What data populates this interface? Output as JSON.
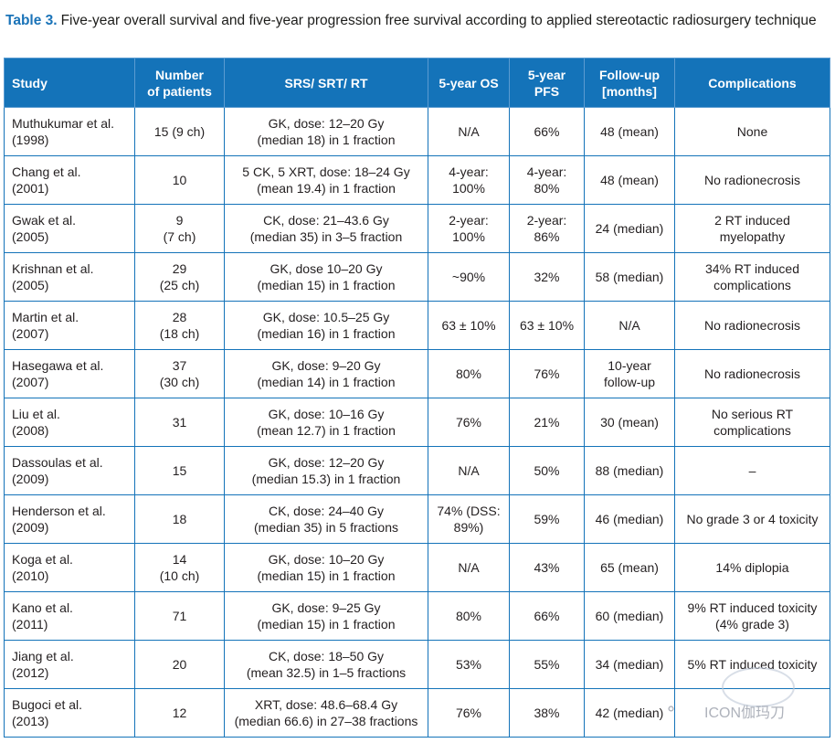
{
  "caption": {
    "label": "Table 3.",
    "text": "Five-year overall survival and five-year progression free survival according to applied stereotactic radiosurgery technique"
  },
  "headers": [
    [
      "Study"
    ],
    [
      "Number",
      "of patients"
    ],
    [
      "SRS/ SRT/ RT"
    ],
    [
      "5-year OS"
    ],
    [
      "5-year",
      "PFS"
    ],
    [
      "Follow-up",
      "[months]"
    ],
    [
      "Complications"
    ]
  ],
  "rows": [
    [
      [
        "Muthukumar et al.",
        "(1998)"
      ],
      [
        "15 (9 ch)"
      ],
      [
        "GK, dose: 12–20 Gy",
        "(median 18) in 1 fraction"
      ],
      [
        "N/A"
      ],
      [
        "66%"
      ],
      [
        "48 (mean)"
      ],
      [
        "None"
      ]
    ],
    [
      [
        "Chang et al.",
        "(2001)"
      ],
      [
        "10"
      ],
      [
        "5 CK, 5 XRT, dose: 18–24 Gy",
        "(mean 19.4) in 1 fraction"
      ],
      [
        "4-year:",
        "100%"
      ],
      [
        "4-year:",
        "80%"
      ],
      [
        "48 (mean)"
      ],
      [
        "No radionecrosis"
      ]
    ],
    [
      [
        "Gwak et al.",
        "(2005)"
      ],
      [
        "9",
        "(7 ch)"
      ],
      [
        "CK, dose: 21–43.6 Gy",
        "(median 35) in 3–5 fraction"
      ],
      [
        "2-year:",
        "100%"
      ],
      [
        "2-year:",
        "86%"
      ],
      [
        "24 (median)"
      ],
      [
        "2 RT induced",
        "myelopathy"
      ]
    ],
    [
      [
        "Krishnan et al.",
        "(2005)"
      ],
      [
        "29",
        "(25 ch)"
      ],
      [
        "GK, dose 10–20 Gy",
        "(median 15) in 1 fraction"
      ],
      [
        "~90%"
      ],
      [
        "32%"
      ],
      [
        "58 (median)"
      ],
      [
        "34% RT induced",
        "complications"
      ]
    ],
    [
      [
        "Martin et al.",
        "(2007)"
      ],
      [
        "28",
        "(18 ch)"
      ],
      [
        "GK, dose: 10.5–25 Gy",
        "(median 16) in 1 fraction"
      ],
      [
        "63 ± 10%"
      ],
      [
        "63 ± 10%"
      ],
      [
        "N/A"
      ],
      [
        "No radionecrosis"
      ]
    ],
    [
      [
        "Hasegawa et al.",
        "(2007)"
      ],
      [
        "37",
        "(30 ch)"
      ],
      [
        "GK, dose: 9–20 Gy",
        "(median 14) in 1 fraction"
      ],
      [
        "80%"
      ],
      [
        "76%"
      ],
      [
        "10-year",
        "follow-up"
      ],
      [
        "No radionecrosis"
      ]
    ],
    [
      [
        "Liu et al.",
        "(2008)"
      ],
      [
        "31"
      ],
      [
        "GK, dose: 10–16 Gy",
        "(mean 12.7) in 1 fraction"
      ],
      [
        "76%"
      ],
      [
        "21%"
      ],
      [
        "30 (mean)"
      ],
      [
        "No serious RT",
        "complications"
      ]
    ],
    [
      [
        "Dassoulas et al.",
        "(2009)"
      ],
      [
        "15"
      ],
      [
        "GK, dose: 12–20 Gy",
        "(median 15.3) in 1 fraction"
      ],
      [
        "N/A"
      ],
      [
        "50%"
      ],
      [
        "88 (median)"
      ],
      [
        "–"
      ]
    ],
    [
      [
        "Henderson et al.",
        "(2009)"
      ],
      [
        "18"
      ],
      [
        "CK, dose: 24–40 Gy",
        "(median 35) in 5 fractions"
      ],
      [
        "74% (DSS:",
        "89%)"
      ],
      [
        "59%"
      ],
      [
        "46 (median)"
      ],
      [
        "No grade 3 or 4 toxicity"
      ]
    ],
    [
      [
        "Koga et al.",
        "(2010)"
      ],
      [
        "14",
        "(10 ch)"
      ],
      [
        "GK, dose: 10–20 Gy",
        "(median 15) in 1 fraction"
      ],
      [
        "N/A"
      ],
      [
        "43%"
      ],
      [
        "65 (mean)"
      ],
      [
        "14% diplopia"
      ]
    ],
    [
      [
        "Kano et al.",
        "(2011)"
      ],
      [
        "71"
      ],
      [
        "GK, dose: 9–25 Gy",
        "(median 15) in 1 fraction"
      ],
      [
        "80%"
      ],
      [
        "66%"
      ],
      [
        "60 (median)"
      ],
      [
        "9% RT induced toxicity",
        "(4% grade 3)"
      ]
    ],
    [
      [
        "Jiang et al.",
        "(2012)"
      ],
      [
        "20"
      ],
      [
        "CK, dose: 18–50 Gy",
        "(mean 32.5) in 1–5 fractions"
      ],
      [
        "53%"
      ],
      [
        "55%"
      ],
      [
        "34 (median)"
      ],
      [
        "5% RT induced toxicity"
      ]
    ],
    [
      [
        "Bugoci et al.",
        "(2013)"
      ],
      [
        "12"
      ],
      [
        "XRT, dose: 48.6–68.4 Gy",
        "(median 66.6) in 27–38 fractions"
      ],
      [
        "76%"
      ],
      [
        "38%"
      ],
      [
        "42 (median)"
      ],
      []
    ]
  ],
  "watermark": {
    "text": "ICON伽玛刀"
  }
}
